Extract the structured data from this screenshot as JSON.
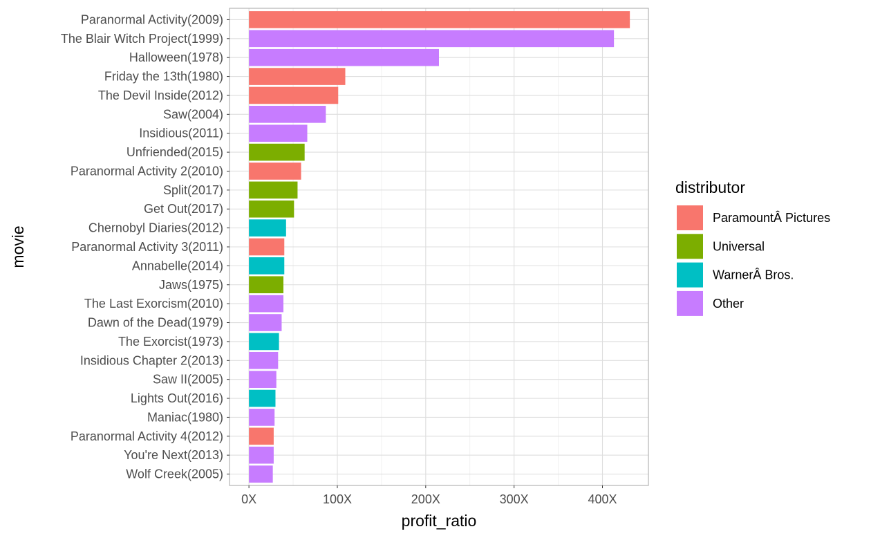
{
  "chart_data": {
    "type": "bar",
    "orientation": "horizontal",
    "xlabel": "profit_ratio",
    "ylabel": "movie",
    "xlim": [
      -22,
      452
    ],
    "x_ticks": [
      0,
      100,
      200,
      300,
      400
    ],
    "x_tick_labels": [
      "0X",
      "100X",
      "200X",
      "300X",
      "400X"
    ],
    "grid": true,
    "legend": {
      "title": "distributor",
      "position": "right",
      "entries": [
        {
          "label": "ParamountÂ Pictures",
          "color": "#F8766D"
        },
        {
          "label": "Universal",
          "color": "#7CAE00"
        },
        {
          "label": "WarnerÂ Bros.",
          "color": "#00BFC4"
        },
        {
          "label": "Other",
          "color": "#C77CFF"
        }
      ]
    },
    "bars": [
      {
        "category": "Paranormal Activity(2009)",
        "value": 431,
        "distributor": "ParamountÂ Pictures"
      },
      {
        "category": "The Blair Witch Project(1999)",
        "value": 413,
        "distributor": "Other"
      },
      {
        "category": "Halloween(1978)",
        "value": 215,
        "distributor": "Other"
      },
      {
        "category": "Friday the 13th(1980)",
        "value": 109,
        "distributor": "ParamountÂ Pictures"
      },
      {
        "category": "The Devil Inside(2012)",
        "value": 101,
        "distributor": "ParamountÂ Pictures"
      },
      {
        "category": "Saw(2004)",
        "value": 87,
        "distributor": "Other"
      },
      {
        "category": "Insidious(2011)",
        "value": 66,
        "distributor": "Other"
      },
      {
        "category": "Unfriended(2015)",
        "value": 63,
        "distributor": "Universal"
      },
      {
        "category": "Paranormal Activity 2(2010)",
        "value": 59,
        "distributor": "ParamountÂ Pictures"
      },
      {
        "category": "Split(2017)",
        "value": 55,
        "distributor": "Universal"
      },
      {
        "category": "Get Out(2017)",
        "value": 51,
        "distributor": "Universal"
      },
      {
        "category": "Chernobyl Diaries(2012)",
        "value": 42,
        "distributor": "WarnerÂ Bros."
      },
      {
        "category": "Paranormal Activity 3(2011)",
        "value": 40,
        "distributor": "ParamountÂ Pictures"
      },
      {
        "category": "Annabelle(2014)",
        "value": 40,
        "distributor": "WarnerÂ Bros."
      },
      {
        "category": "Jaws(1975)",
        "value": 39,
        "distributor": "Universal"
      },
      {
        "category": "The Last Exorcism(2010)",
        "value": 39,
        "distributor": "Other"
      },
      {
        "category": "Dawn of the Dead(1979)",
        "value": 37,
        "distributor": "Other"
      },
      {
        "category": "The Exorcist(1973)",
        "value": 34,
        "distributor": "WarnerÂ Bros."
      },
      {
        "category": "Insidious Chapter 2(2013)",
        "value": 33,
        "distributor": "Other"
      },
      {
        "category": "Saw II(2005)",
        "value": 31,
        "distributor": "Other"
      },
      {
        "category": "Lights Out(2016)",
        "value": 30,
        "distributor": "WarnerÂ Bros."
      },
      {
        "category": "Maniac(1980)",
        "value": 29,
        "distributor": "Other"
      },
      {
        "category": "Paranormal Activity 4(2012)",
        "value": 28,
        "distributor": "ParamountÂ Pictures"
      },
      {
        "category": "You're Next(2013)",
        "value": 28,
        "distributor": "Other"
      },
      {
        "category": "Wolf Creek(2005)",
        "value": 27,
        "distributor": "Other"
      }
    ]
  }
}
